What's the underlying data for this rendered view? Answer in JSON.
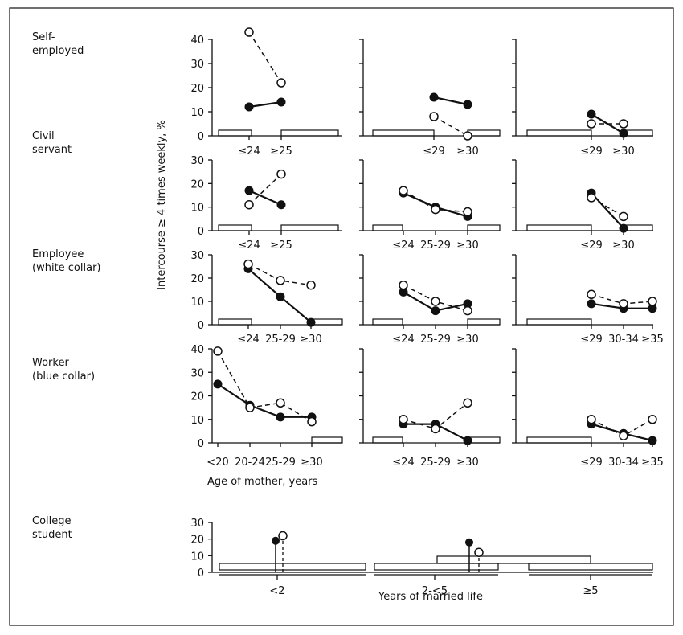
{
  "figure": {
    "ylabel": "Intercourse ≥ 4 times weekly, %",
    "xlabel_age": "Age of mother, years",
    "xlabel_years": "Years of married life",
    "rows": [
      "Self-\nemployed",
      "Civil\nservant",
      "Employee\n(white collar)",
      "Worker\n(blue collar)",
      "College\nstudent"
    ]
  },
  "chart_data": [
    {
      "type": "line",
      "row": "Self-employed",
      "years": "<2",
      "ylim": [
        0,
        40
      ],
      "yticks": [
        0,
        10,
        20,
        30,
        40
      ],
      "categories": [
        "≤24",
        "≥25"
      ],
      "series": [
        {
          "style": "filled",
          "values": [
            12,
            14
          ]
        },
        {
          "style": "open",
          "values": [
            43,
            22
          ]
        }
      ]
    },
    {
      "type": "line",
      "row": "Self-employed",
      "years": "2-<5",
      "ylim": [
        0,
        40
      ],
      "categories": [
        "≤29",
        "≥30"
      ],
      "series": [
        {
          "style": "filled",
          "values": [
            16,
            13
          ]
        },
        {
          "style": "open",
          "values": [
            8,
            0
          ]
        }
      ]
    },
    {
      "type": "line",
      "row": "Self-employed",
      "years": "≥5",
      "ylim": [
        0,
        40
      ],
      "categories": [
        "≤29",
        "≥30"
      ],
      "series": [
        {
          "style": "filled",
          "values": [
            9,
            1
          ]
        },
        {
          "style": "open",
          "values": [
            5,
            5
          ]
        }
      ]
    },
    {
      "type": "line",
      "row": "Civil servant",
      "years": "<2",
      "ylim": [
        0,
        30
      ],
      "yticks": [
        0,
        10,
        20,
        30
      ],
      "categories": [
        "≤24",
        "≥25"
      ],
      "series": [
        {
          "style": "filled",
          "values": [
            17,
            11
          ]
        },
        {
          "style": "open",
          "values": [
            11,
            24
          ]
        }
      ]
    },
    {
      "type": "line",
      "row": "Civil servant",
      "years": "2-<5",
      "ylim": [
        0,
        30
      ],
      "categories": [
        "≤24",
        "25-29",
        "≥30"
      ],
      "series": [
        {
          "style": "filled",
          "values": [
            16,
            10,
            6
          ]
        },
        {
          "style": "open",
          "values": [
            17,
            9,
            8
          ]
        }
      ]
    },
    {
      "type": "line",
      "row": "Civil servant",
      "years": "≥5",
      "ylim": [
        0,
        30
      ],
      "categories": [
        "≤29",
        "≥30"
      ],
      "series": [
        {
          "style": "filled",
          "values": [
            16,
            1
          ]
        },
        {
          "style": "open",
          "values": [
            14,
            6
          ]
        }
      ]
    },
    {
      "type": "line",
      "row": "Employee (white collar)",
      "years": "<2",
      "ylim": [
        0,
        30
      ],
      "yticks": [
        0,
        10,
        20,
        30
      ],
      "categories": [
        "≤24",
        "25-29",
        "≥30"
      ],
      "series": [
        {
          "style": "filled",
          "values": [
            24,
            12,
            1
          ]
        },
        {
          "style": "open",
          "values": [
            26,
            19,
            17
          ]
        }
      ]
    },
    {
      "type": "line",
      "row": "Employee (white collar)",
      "years": "2-<5",
      "ylim": [
        0,
        30
      ],
      "categories": [
        "≤24",
        "25-29",
        "≥30"
      ],
      "series": [
        {
          "style": "filled",
          "values": [
            14,
            6,
            9
          ]
        },
        {
          "style": "open",
          "values": [
            17,
            10,
            6
          ]
        }
      ]
    },
    {
      "type": "line",
      "row": "Employee (white collar)",
      "years": "≥5",
      "ylim": [
        0,
        30
      ],
      "categories": [
        "≤29",
        "30-34",
        "≥35"
      ],
      "series": [
        {
          "style": "filled",
          "values": [
            9,
            7,
            7
          ]
        },
        {
          "style": "open",
          "values": [
            13,
            9,
            10
          ]
        }
      ]
    },
    {
      "type": "line",
      "row": "Worker (blue collar)",
      "years": "<2",
      "ylim": [
        0,
        40
      ],
      "yticks": [
        0,
        10,
        20,
        30,
        40
      ],
      "categories": [
        "<20",
        "20-24",
        "25-29",
        "≥30"
      ],
      "series": [
        {
          "style": "filled",
          "values": [
            25,
            16,
            11,
            11
          ]
        },
        {
          "style": "open",
          "values": [
            39,
            15,
            17,
            9
          ]
        }
      ]
    },
    {
      "type": "line",
      "row": "Worker (blue collar)",
      "years": "2-<5",
      "ylim": [
        0,
        40
      ],
      "categories": [
        "≤24",
        "25-29",
        "≥30"
      ],
      "series": [
        {
          "style": "filled",
          "values": [
            8,
            8,
            1
          ]
        },
        {
          "style": "open",
          "values": [
            10,
            6,
            17
          ]
        }
      ]
    },
    {
      "type": "line",
      "row": "Worker (blue collar)",
      "years": "≥5",
      "ylim": [
        0,
        40
      ],
      "categories": [
        "≤29",
        "30-34",
        "≥35"
      ],
      "series": [
        {
          "style": "filled",
          "values": [
            8,
            4,
            1
          ]
        },
        {
          "style": "open",
          "values": [
            10,
            3,
            10
          ]
        }
      ]
    },
    {
      "type": "bar",
      "row": "College student",
      "ylim": [
        0,
        30
      ],
      "yticks": [
        0,
        10,
        20,
        30
      ],
      "categories": [
        "<2",
        "2-<5",
        "≥5"
      ],
      "series": [
        {
          "style": "filled",
          "values": [
            19,
            18,
            null
          ]
        },
        {
          "style": "open",
          "values": [
            22,
            12,
            null
          ]
        }
      ]
    }
  ]
}
